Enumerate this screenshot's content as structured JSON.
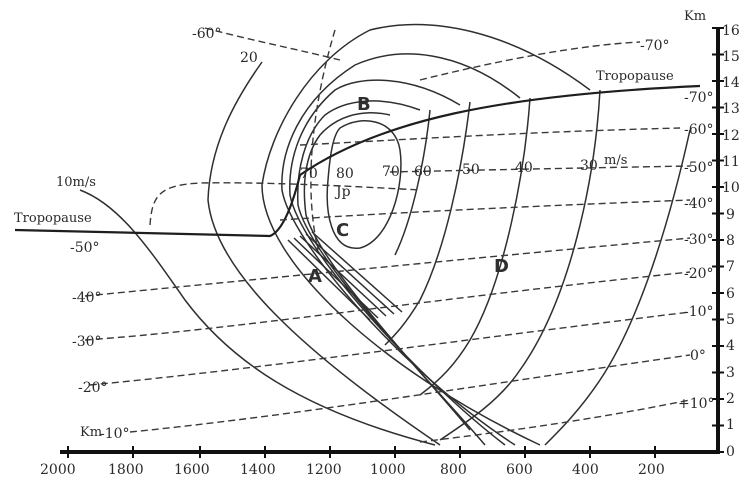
{
  "axes": {
    "x_unit": "Km",
    "y_unit": "Km",
    "x_ticks": [
      "2000",
      "1800",
      "1600",
      "1400",
      "1200",
      "1000",
      "800",
      "600",
      "400",
      "200"
    ],
    "y_ticks": [
      "0",
      "1",
      "2",
      "3",
      "4",
      "5",
      "6",
      "7",
      "8",
      "9",
      "10",
      "11",
      "12",
      "13",
      "14",
      "15",
      "16"
    ]
  },
  "labels": {
    "tropopause_left": "Tropopause",
    "tropopause_right": "Tropopause",
    "jet_label": "Jp",
    "wind_unit_left": "10m/s",
    "wind_unit_right": "m/s"
  },
  "regions": [
    "A",
    "B",
    "C",
    "D"
  ],
  "isotach_labels": [
    "70",
    "80",
    "70",
    "60",
    "50",
    "40",
    "30",
    "20"
  ],
  "isotherm_labels_left": [
    "-60°",
    "-50°",
    "-40°",
    "-30°",
    "-20°",
    "-10°"
  ],
  "isotherm_labels_right": [
    "-70°",
    "-70°",
    "-60°",
    "-50°",
    "-40°",
    "-30°",
    "-20°",
    "-10°",
    "0°",
    "+10°"
  ],
  "colors": {
    "line": "#2f2f2f",
    "background": "#ffffff"
  }
}
